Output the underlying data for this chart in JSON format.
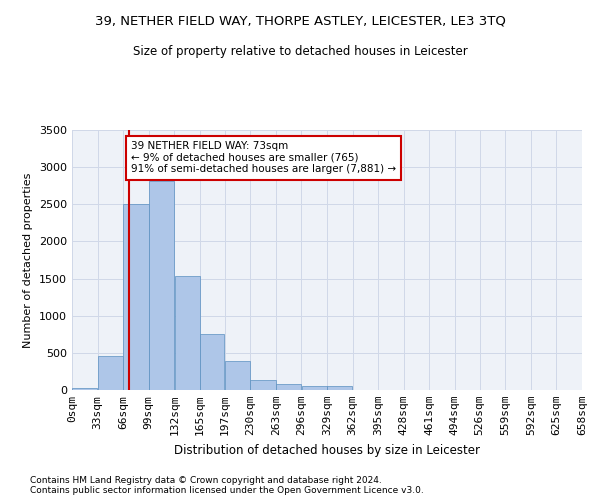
{
  "title": "39, NETHER FIELD WAY, THORPE ASTLEY, LEICESTER, LE3 3TQ",
  "subtitle": "Size of property relative to detached houses in Leicester",
  "xlabel": "Distribution of detached houses by size in Leicester",
  "ylabel": "Number of detached properties",
  "bin_labels": [
    "0sqm",
    "33sqm",
    "66sqm",
    "99sqm",
    "132sqm",
    "165sqm",
    "197sqm",
    "230sqm",
    "263sqm",
    "296sqm",
    "329sqm",
    "362sqm",
    "395sqm",
    "428sqm",
    "461sqm",
    "494sqm",
    "526sqm",
    "559sqm",
    "592sqm",
    "625sqm",
    "658sqm"
  ],
  "bar_values": [
    30,
    460,
    2500,
    2820,
    1530,
    750,
    390,
    140,
    80,
    55,
    50,
    0,
    0,
    0,
    0,
    0,
    0,
    0,
    0,
    0
  ],
  "bar_color": "#aec6e8",
  "bar_edgecolor": "#5a8fc0",
  "vline_x": 73,
  "vline_color": "#cc0000",
  "annotation_text": "39 NETHER FIELD WAY: 73sqm\n← 9% of detached houses are smaller (765)\n91% of semi-detached houses are larger (7,881) →",
  "annotation_box_color": "#ffffff",
  "annotation_box_edgecolor": "#cc0000",
  "ylim": [
    0,
    3500
  ],
  "grid_color": "#d0d8e8",
  "footer": "Contains HM Land Registry data © Crown copyright and database right 2024.\nContains public sector information licensed under the Open Government Licence v3.0.",
  "bin_edges": [
    0,
    33,
    66,
    99,
    132,
    165,
    197,
    230,
    263,
    296,
    329,
    362,
    395,
    428,
    461,
    494,
    526,
    559,
    592,
    625,
    658
  ],
  "fig_width": 6.0,
  "fig_height": 5.0,
  "dpi": 100
}
